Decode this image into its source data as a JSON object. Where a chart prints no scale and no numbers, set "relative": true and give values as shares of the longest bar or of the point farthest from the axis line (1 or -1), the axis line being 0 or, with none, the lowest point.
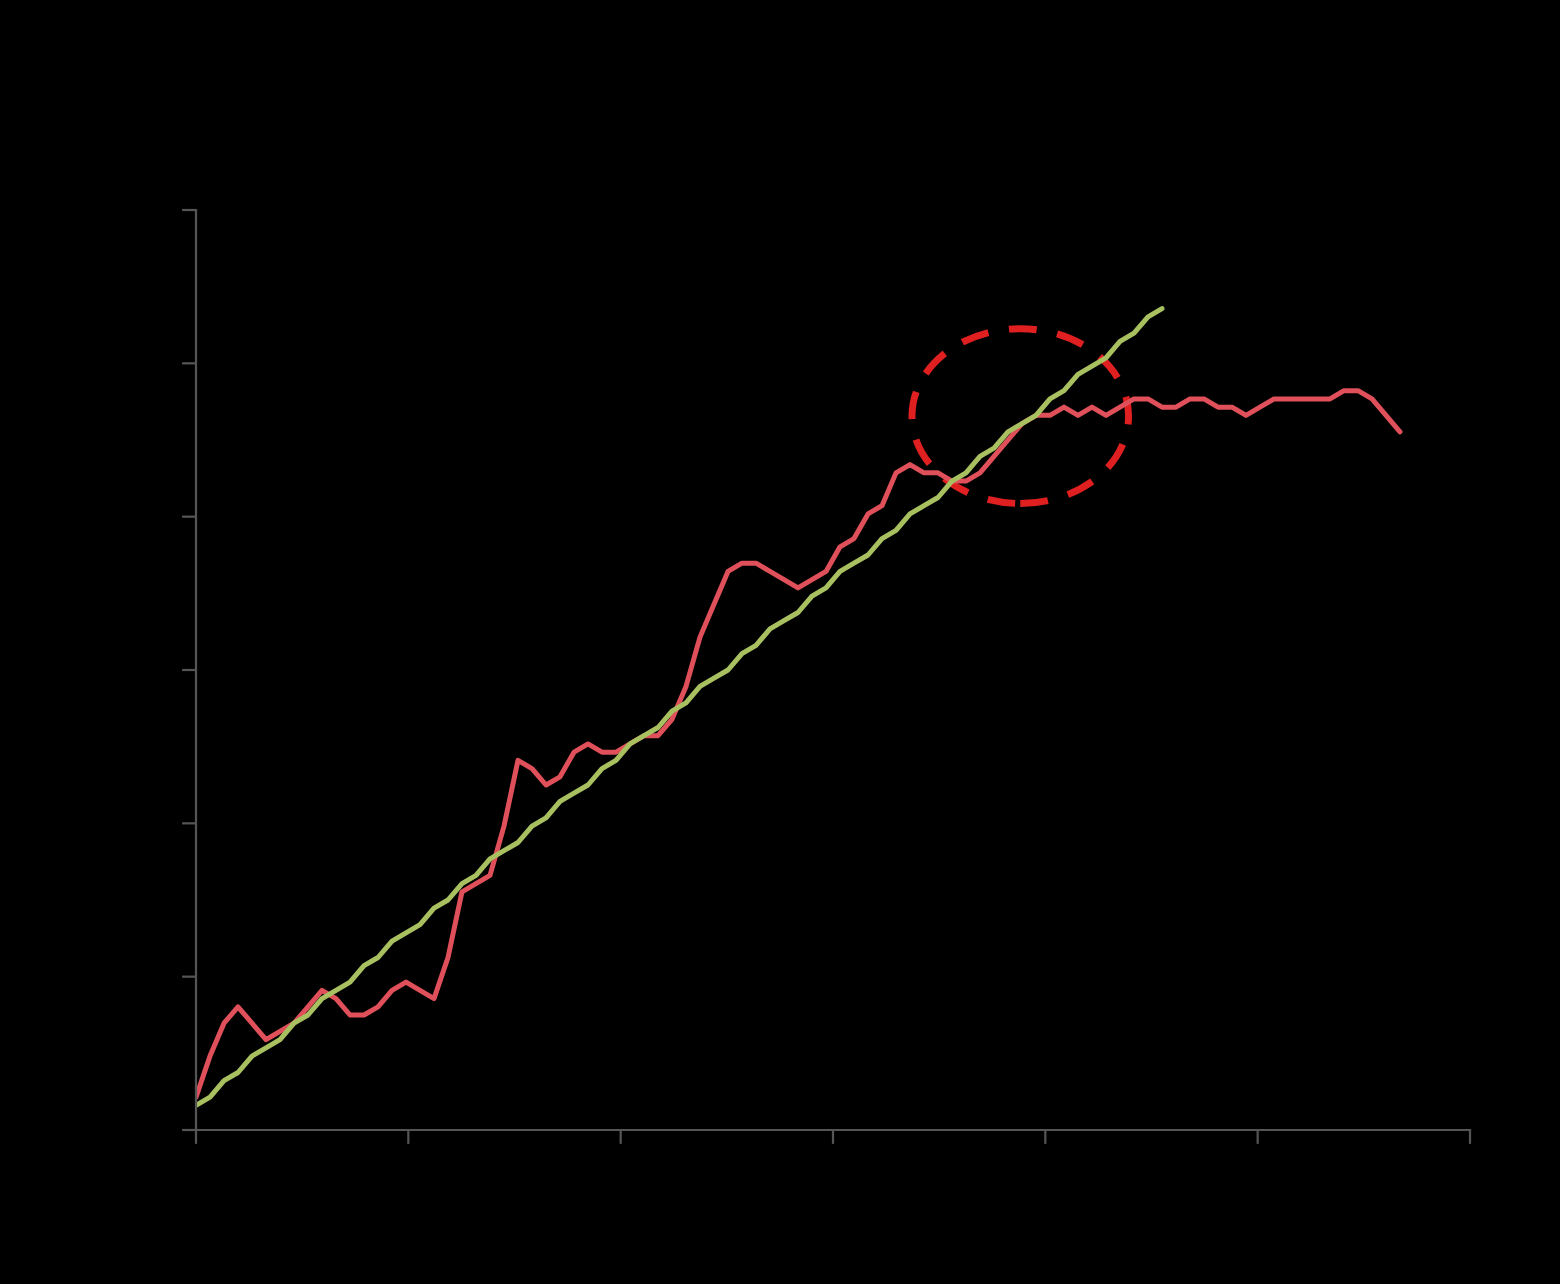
{
  "chart_data": {
    "type": "line",
    "relative": true,
    "grid": false,
    "legend": false,
    "marker": "none",
    "line_style": "solid",
    "categories": [
      null,
      null,
      null,
      null,
      null,
      null,
      null,
      null,
      null,
      null,
      null,
      null,
      null,
      null,
      null,
      null,
      null,
      null,
      null,
      null,
      null,
      null,
      null,
      null,
      null,
      null,
      null,
      null,
      null,
      null,
      null,
      null,
      null,
      null,
      null,
      null,
      null,
      null,
      null,
      null,
      null,
      null,
      null,
      null,
      null,
      null,
      null,
      null,
      null,
      null,
      null,
      null,
      null,
      null,
      null,
      null,
      null,
      null,
      null,
      null,
      null,
      null,
      null,
      null,
      null,
      null,
      null,
      null,
      null,
      null,
      null,
      null,
      null,
      null,
      null,
      null,
      null,
      null,
      null,
      null,
      null,
      null,
      null,
      null,
      null,
      null,
      null,
      null,
      null,
      null,
      null,
      null
    ],
    "series": [
      {
        "color": "#e0505a",
        "values": [
          0.04,
          0.09,
          0.13,
          0.15,
          0.13,
          0.11,
          0.12,
          0.13,
          0.15,
          0.17,
          0.16,
          0.14,
          0.14,
          0.15,
          0.17,
          0.18,
          0.17,
          0.16,
          0.21,
          0.29,
          0.3,
          0.31,
          0.37,
          0.45,
          0.44,
          0.42,
          0.43,
          0.46,
          0.47,
          0.46,
          0.46,
          0.47,
          0.48,
          0.48,
          0.5,
          0.54,
          0.6,
          0.64,
          0.68,
          0.69,
          0.69,
          0.68,
          0.67,
          0.66,
          0.67,
          0.68,
          0.71,
          0.72,
          0.75,
          0.76,
          0.8,
          0.81,
          0.8,
          0.8,
          0.79,
          0.79,
          0.8,
          0.82,
          0.84,
          0.86,
          0.87,
          0.87,
          0.88,
          0.87,
          0.88,
          0.87,
          0.88,
          0.89,
          0.89,
          0.88,
          0.88,
          0.89,
          0.89,
          0.88,
          0.88,
          0.87,
          0.88,
          0.89,
          0.89,
          0.89,
          0.89,
          0.89,
          0.9,
          0.9,
          0.89,
          0.87,
          0.85,
          null,
          null,
          null,
          null,
          null
        ]
      },
      {
        "color": "#a8c060",
        "values": [
          0.03,
          0.04,
          0.06,
          0.07,
          0.09,
          0.1,
          0.11,
          0.13,
          0.14,
          0.16,
          0.17,
          0.18,
          0.2,
          0.21,
          0.23,
          0.24,
          0.25,
          0.27,
          0.28,
          0.3,
          0.31,
          0.33,
          0.34,
          0.35,
          0.37,
          0.38,
          0.4,
          0.41,
          0.42,
          0.44,
          0.45,
          0.47,
          0.48,
          0.49,
          0.51,
          0.52,
          0.54,
          0.55,
          0.56,
          0.58,
          0.59,
          0.61,
          0.62,
          0.63,
          0.65,
          0.66,
          0.68,
          0.69,
          0.7,
          0.72,
          0.73,
          0.75,
          0.76,
          0.77,
          0.79,
          0.8,
          0.82,
          0.83,
          0.85,
          0.86,
          0.87,
          0.89,
          0.9,
          0.92,
          0.93,
          0.94,
          0.96,
          0.97,
          0.99,
          1,
          null,
          null,
          null,
          null,
          null,
          null,
          null,
          null,
          null,
          null,
          null,
          null,
          null,
          null,
          null,
          null,
          null,
          null,
          null,
          null,
          null,
          null
        ]
      }
    ]
  }
}
